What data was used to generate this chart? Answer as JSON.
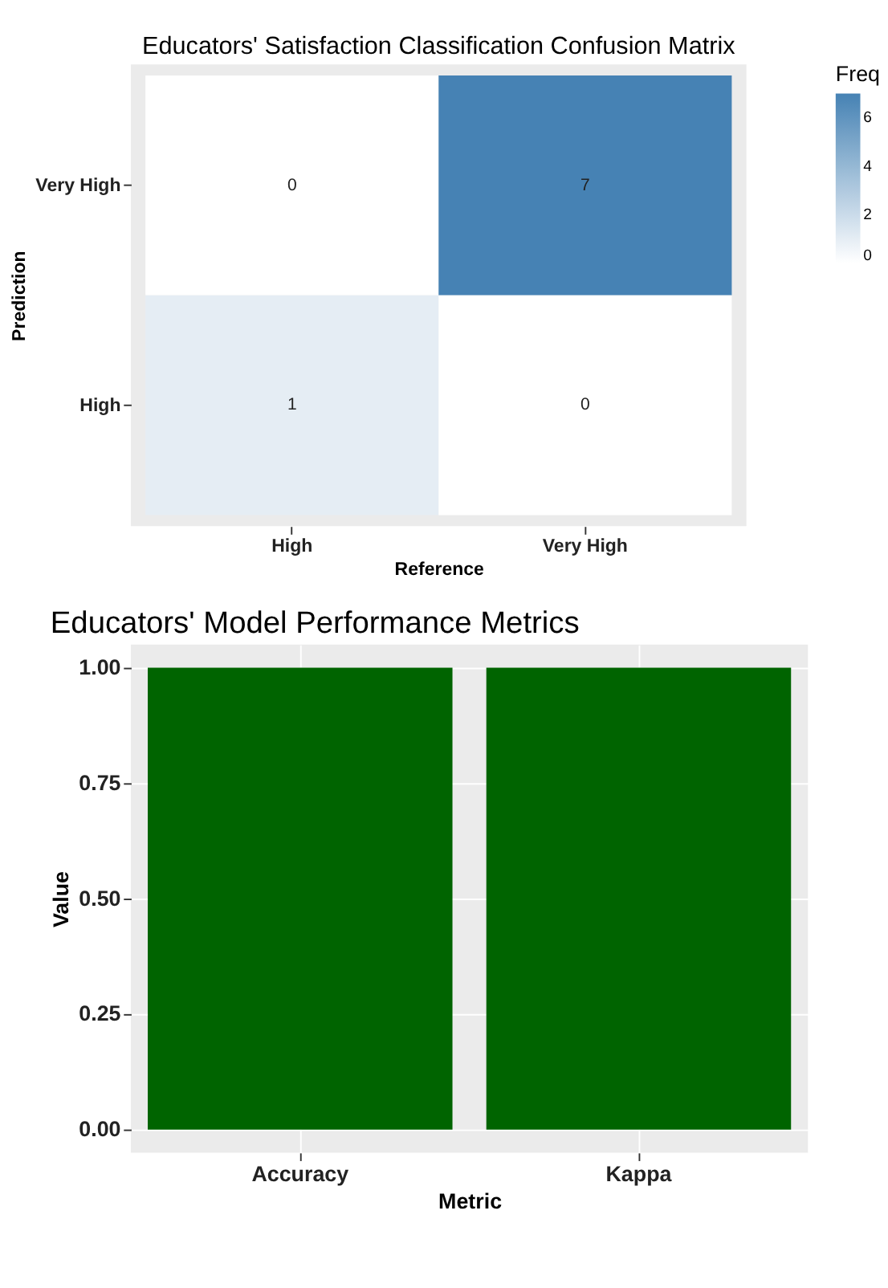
{
  "chart_data": [
    {
      "type": "heatmap",
      "title": "Educators' Satisfaction Classification Confusion Matrix",
      "xlabel": "Reference",
      "ylabel": "Prediction",
      "legend_title": "Freq",
      "categories": [
        "High",
        "Very High"
      ],
      "y_categories": [
        "Very High",
        "High"
      ],
      "cells": [
        [
          0,
          7
        ],
        [
          1,
          0
        ]
      ],
      "data_labels": true,
      "colors": [
        "#ffffff",
        "#4682b4"
      ],
      "clim": [
        0,
        7
      ],
      "cticks": [
        0,
        2,
        4,
        6
      ]
    },
    {
      "type": "bar",
      "title": "Educators' Model Performance Metrics",
      "xlabel": "Metric",
      "ylabel": "Value",
      "categories": [
        "Accuracy",
        "Kappa"
      ],
      "values": [
        1.0,
        1.0
      ],
      "color": "#006400",
      "ylim": [
        -0.05,
        1.05
      ],
      "yticks": [
        {
          "value": 0,
          "label": "0.00"
        },
        {
          "value": 0.25,
          "label": "0.25"
        },
        {
          "value": 0.5,
          "label": "0.50"
        },
        {
          "value": 0.75,
          "label": "0.75"
        },
        {
          "value": 1,
          "label": "1.00"
        }
      ],
      "grid": true
    }
  ]
}
